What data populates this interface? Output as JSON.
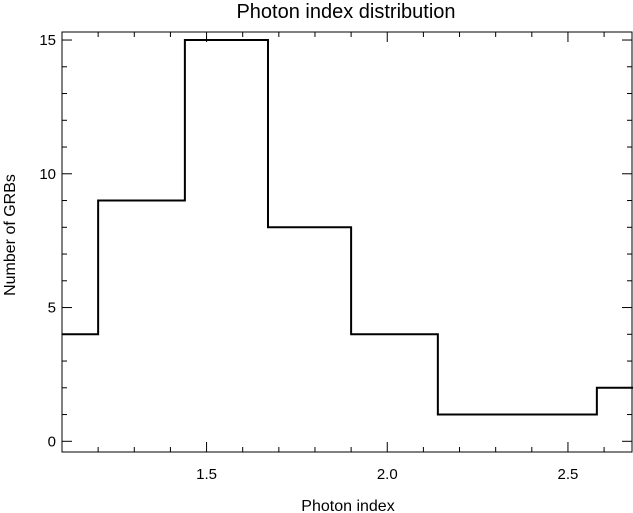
{
  "chart_data": {
    "type": "bar",
    "style": "step-histogram",
    "title": "Photon index distribution",
    "xlabel": "Photon index",
    "ylabel": "Number of GRBs",
    "xlim": [
      1.1,
      2.68
    ],
    "ylim": [
      -0.4,
      15.3
    ],
    "bin_edges": [
      1.1,
      1.2,
      1.44,
      1.67,
      1.9,
      2.14,
      2.58,
      2.68
    ],
    "values": [
      4,
      9,
      15,
      8,
      4,
      1,
      2
    ],
    "x_ticks": [
      {
        "value": 1.5,
        "label": "1.5"
      },
      {
        "value": 2.0,
        "label": "2.0"
      },
      {
        "value": 2.5,
        "label": "2.5"
      }
    ],
    "x_minor_ticks": [
      1.1,
      1.2,
      1.3,
      1.4,
      1.6,
      1.7,
      1.8,
      1.9,
      2.1,
      2.2,
      2.3,
      2.4,
      2.6
    ],
    "y_ticks": [
      {
        "value": 0,
        "label": "0"
      },
      {
        "value": 5,
        "label": "5"
      },
      {
        "value": 10,
        "label": "10"
      },
      {
        "value": 15,
        "label": "15"
      }
    ],
    "y_minor_ticks": [
      1,
      2,
      3,
      4,
      6,
      7,
      8,
      9,
      11,
      12,
      13,
      14
    ],
    "grid": false,
    "colors": {
      "line": "#000000",
      "background": "#ffffff"
    }
  }
}
